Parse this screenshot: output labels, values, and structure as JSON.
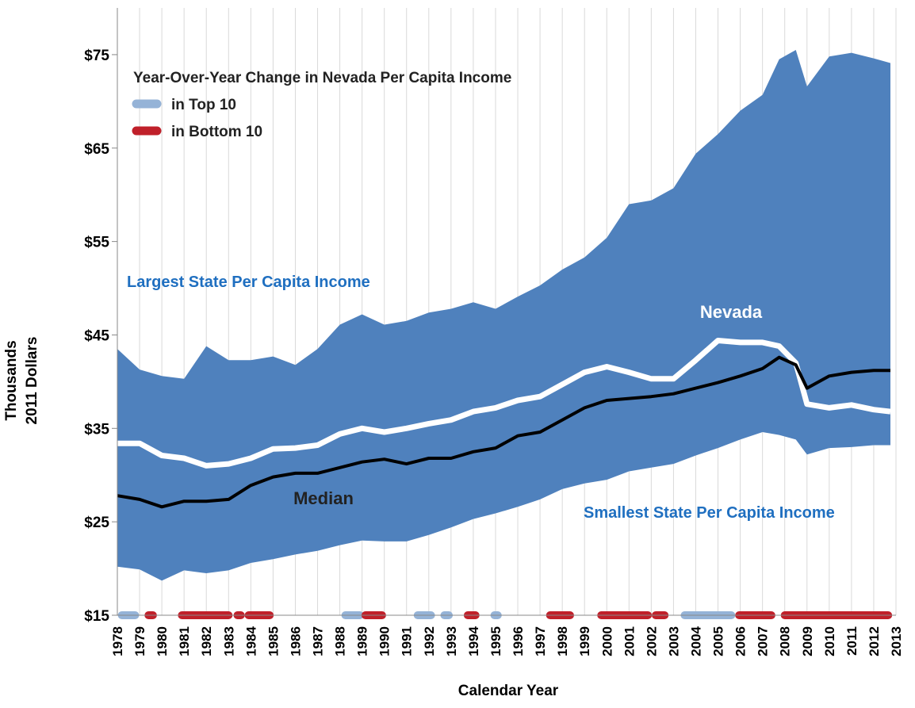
{
  "chart_data": {
    "type": "band",
    "legend_title": "Year-Over-Year Change in Nevada Per Capita Income",
    "y_label": [
      "Thousands",
      "2011 Dollars"
    ],
    "x_label": "Calendar Year",
    "x": [
      1978,
      1979,
      1980,
      1981,
      1982,
      1983,
      1984,
      1985,
      1986,
      1987,
      1988,
      1989,
      1990,
      1991,
      1992,
      1993,
      1994,
      1995,
      1996,
      1997,
      1998,
      1999,
      2000,
      2001,
      2002,
      2003,
      2004,
      2005,
      2006,
      2007,
      2007.75,
      2008.5,
      2009,
      2010,
      2011,
      2012,
      2012.75
    ],
    "band": {
      "name": "Largest State Per Capita Income",
      "lower_name": "Smallest State Per Capita Income",
      "color": "#4f81bd",
      "upper": [
        43.5,
        41.3,
        40.6,
        40.3,
        43.8,
        42.3,
        42.3,
        42.7,
        41.8,
        43.5,
        46.1,
        47.2,
        46.1,
        46.5,
        47.4,
        47.8,
        48.5,
        47.8,
        49.1,
        50.3,
        52.0,
        53.3,
        55.4,
        59.0,
        59.4,
        60.7,
        64.4,
        66.5,
        69.0,
        70.7,
        74.5,
        75.5,
        71.6,
        74.8,
        75.2,
        74.6,
        74.1
      ],
      "lower": [
        20.2,
        19.9,
        18.7,
        19.8,
        19.5,
        19.8,
        20.6,
        21.0,
        21.5,
        21.9,
        22.5,
        23.0,
        22.9,
        22.9,
        23.6,
        24.4,
        25.3,
        25.9,
        26.6,
        27.4,
        28.5,
        29.1,
        29.5,
        30.4,
        30.8,
        31.2,
        32.1,
        32.9,
        33.8,
        34.6,
        34.3,
        33.8,
        32.2,
        32.9,
        33.0,
        33.2,
        33.2
      ]
    },
    "lines": [
      {
        "name": "Nevada",
        "color": "#ffffff",
        "values": [
          33.4,
          33.4,
          32.1,
          31.8,
          31.0,
          31.2,
          31.8,
          32.8,
          32.9,
          33.2,
          34.4,
          35.0,
          34.6,
          35.0,
          35.5,
          35.9,
          36.8,
          37.2,
          38.0,
          38.4,
          39.7,
          41.0,
          41.6,
          41.0,
          40.3,
          40.3,
          42.3,
          44.4,
          44.2,
          44.2,
          43.8,
          42.0,
          37.6,
          37.2,
          37.5,
          37.0,
          36.8
        ]
      },
      {
        "name": "Median",
        "color": "#000000",
        "values": [
          27.8,
          27.4,
          26.6,
          27.2,
          27.2,
          27.4,
          28.9,
          29.8,
          30.2,
          30.2,
          30.8,
          31.4,
          31.7,
          31.2,
          31.8,
          31.8,
          32.5,
          32.9,
          34.2,
          34.6,
          35.9,
          37.2,
          38.0,
          38.2,
          38.4,
          38.7,
          39.3,
          39.9,
          40.6,
          41.4,
          42.6,
          41.8,
          39.3,
          40.6,
          41.0,
          41.2,
          41.2
        ]
      }
    ],
    "indicators": [
      {
        "name": "in Top 10",
        "color": "#95b3d7",
        "ranges": [
          [
            1978.2,
            1978.8
          ],
          [
            1988.25,
            1988.9
          ],
          [
            1991.5,
            1992.1
          ],
          [
            1992.7,
            1992.9
          ],
          [
            1994.95,
            1995.1
          ],
          [
            2003.5,
            2005.6
          ]
        ]
      },
      {
        "name": "in Bottom 10",
        "color": "#c0202a",
        "ranges": [
          [
            1979.4,
            1979.6
          ],
          [
            1980.9,
            1983.0
          ],
          [
            1983.4,
            1983.55
          ],
          [
            1983.9,
            1984.85
          ],
          [
            1989.15,
            1989.9
          ],
          [
            1993.75,
            1994.1
          ],
          [
            1997.45,
            1998.35
          ],
          [
            1999.75,
            2001.85
          ],
          [
            2002.2,
            2002.6
          ],
          [
            2005.95,
            2007.4
          ],
          [
            2008.0,
            2012.65
          ]
        ]
      }
    ],
    "xlim": [
      1978,
      2013
    ],
    "xticks": [
      1978,
      1979,
      1980,
      1981,
      1982,
      1983,
      1984,
      1985,
      1986,
      1987,
      1988,
      1989,
      1990,
      1991,
      1992,
      1993,
      1994,
      1995,
      1996,
      1997,
      1998,
      1999,
      2000,
      2001,
      2002,
      2003,
      2004,
      2005,
      2006,
      2007,
      2008,
      2009,
      2010,
      2011,
      2012,
      2013
    ],
    "ylim": [
      15,
      80
    ],
    "yticks": [
      {
        "value": 15,
        "label": "$15"
      },
      {
        "value": 25,
        "label": "$25"
      },
      {
        "value": 35,
        "label": "$35"
      },
      {
        "value": 45,
        "label": "$45"
      },
      {
        "value": 55,
        "label": "$55"
      },
      {
        "value": 65,
        "label": "$65"
      },
      {
        "value": 75,
        "label": "$75"
      }
    ],
    "grid": true
  }
}
